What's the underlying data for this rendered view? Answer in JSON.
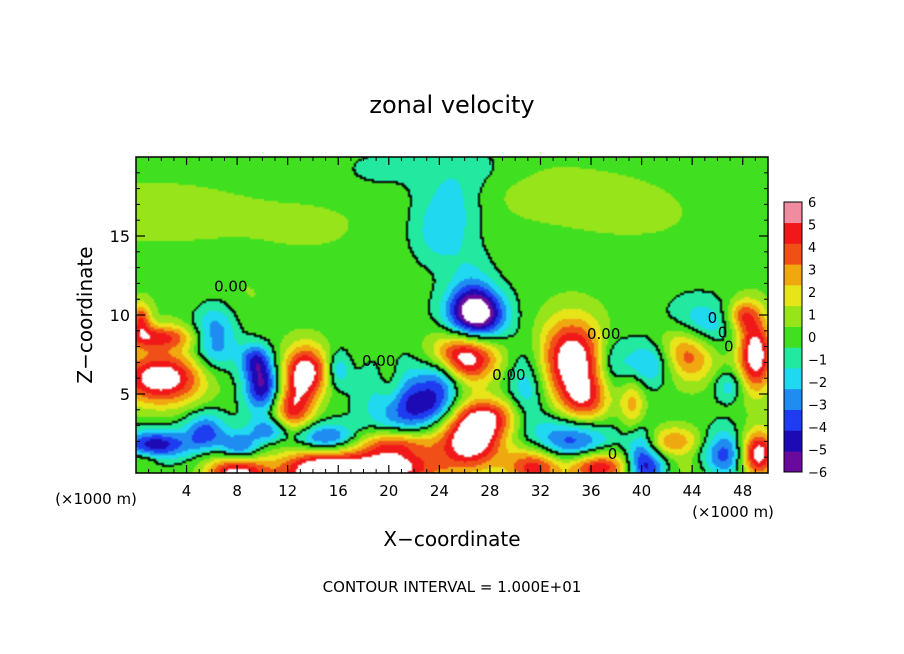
{
  "chart_data": {
    "type": "heatmap",
    "title": "zonal velocity",
    "xlabel": "X−coordinate",
    "ylabel": "Z−coordinate",
    "x_unit_left": "(×1000 m)",
    "x_unit_right": "(×1000 m)",
    "footer": "CONTOUR INTERVAL = 1.000E+01",
    "xlim": [
      0,
      50
    ],
    "ylim": [
      0,
      20
    ],
    "x_ticks": [
      4,
      8,
      12,
      16,
      20,
      24,
      28,
      32,
      36,
      40,
      44,
      48
    ],
    "x_tick_labels": [
      "4",
      "8",
      "12",
      "16",
      "20",
      "24",
      "28",
      "32",
      "36",
      "40",
      "44",
      "48"
    ],
    "y_ticks": [
      5,
      10,
      15
    ],
    "y_tick_labels": [
      "5",
      "10",
      "15"
    ],
    "colorbar": {
      "min": -6,
      "max": 6,
      "tick_labels": [
        "6",
        "5",
        "4",
        "3",
        "2",
        "1",
        "0",
        "−1",
        "−2",
        "−3",
        "−4",
        "−5",
        "−6"
      ],
      "colors": [
        "#6a0a9c",
        "#1e0ab4",
        "#1e3cf0",
        "#1e8cf0",
        "#20d8f0",
        "#22e8a0",
        "#40e020",
        "#98e41a",
        "#e8e41a",
        "#f0a810",
        "#f05018",
        "#f01818",
        "#f08ca0"
      ],
      "above_max_color": "#ffffff"
    },
    "contour_labels": [
      {
        "text": "0.00",
        "x": 7.5,
        "y": 11.8
      },
      {
        "text": "0.00",
        "x": 19.2,
        "y": 7.1
      },
      {
        "text": "0.00",
        "x": 29.5,
        "y": 6.2
      },
      {
        "text": "0.00",
        "x": 37.0,
        "y": 8.8
      },
      {
        "text": "0",
        "x": 45.6,
        "y": 9.8
      },
      {
        "text": "0",
        "x": 46.4,
        "y": 8.9
      },
      {
        "text": "0",
        "x": 46.9,
        "y": 8.0
      },
      {
        "text": "0",
        "x": 37.7,
        "y": 1.2
      }
    ],
    "features": [
      {
        "x": 1.0,
        "y": 16.6,
        "w": 8.0,
        "h": 2.0,
        "v": 1.3
      },
      {
        "x": 14.0,
        "y": 15.6,
        "w": 6.0,
        "h": 2.4,
        "v": 0.6
      },
      {
        "x": 31.5,
        "y": 18.0,
        "w": 10.0,
        "h": 2.2,
        "v": 0.9
      },
      {
        "x": 40.0,
        "y": 16.0,
        "w": 8.0,
        "h": 2.5,
        "v": 0.5
      },
      {
        "x": 6.5,
        "y": 11.0,
        "w": 5.0,
        "h": 2.0,
        "v": 0.7
      },
      {
        "x": 25.0,
        "y": 17.5,
        "w": 2.8,
        "h": 2.5,
        "v": -2.0
      },
      {
        "x": 24.0,
        "y": 15.0,
        "w": 2.2,
        "h": 2.0,
        "v": -1.7
      },
      {
        "x": 26.5,
        "y": 12.5,
        "w": 1.8,
        "h": 1.8,
        "v": -1.2
      },
      {
        "x": 19.5,
        "y": 19.0,
        "w": 3.5,
        "h": 1.4,
        "v": -0.8
      },
      {
        "x": 28.0,
        "y": 19.2,
        "w": 3.0,
        "h": 1.2,
        "v": -0.7
      },
      {
        "x": 26.8,
        "y": 10.5,
        "w": 2.2,
        "h": 1.5,
        "v": -5.5
      },
      {
        "x": 26.0,
        "y": 7.3,
        "w": 2.6,
        "h": 1.6,
        "v": 6.8
      },
      {
        "x": 27.0,
        "y": 9.5,
        "w": 2.2,
        "h": 1.4,
        "v": -4.0
      },
      {
        "x": 24.2,
        "y": 6.0,
        "w": 1.6,
        "h": 1.4,
        "v": -3.5
      },
      {
        "x": 21.0,
        "y": 4.5,
        "w": 2.6,
        "h": 2.4,
        "v": -4.2
      },
      {
        "x": 20.2,
        "y": 5.5,
        "w": 1.2,
        "h": 1.6,
        "v": 2.5
      },
      {
        "x": 23.5,
        "y": 4.2,
        "w": 2.0,
        "h": 1.2,
        "v": -2.8
      },
      {
        "x": 2.0,
        "y": 6.0,
        "w": 3.5,
        "h": 1.7,
        "v": 6.8
      },
      {
        "x": 1.5,
        "y": 8.6,
        "w": 3.5,
        "h": 0.8,
        "v": 4.5
      },
      {
        "x": 0.4,
        "y": 9.8,
        "w": 0.8,
        "h": 1.0,
        "v": 4.0
      },
      {
        "x": 6.2,
        "y": 8.6,
        "w": 1.8,
        "h": 2.2,
        "v": -3.8
      },
      {
        "x": 10.0,
        "y": 5.5,
        "w": 1.4,
        "h": 1.6,
        "v": -5.6
      },
      {
        "x": 9.4,
        "y": 7.2,
        "w": 1.2,
        "h": 1.0,
        "v": -3.5
      },
      {
        "x": 13.4,
        "y": 6.4,
        "w": 1.8,
        "h": 1.7,
        "v": 6.6
      },
      {
        "x": 12.4,
        "y": 4.0,
        "w": 1.6,
        "h": 1.5,
        "v": 4.8
      },
      {
        "x": 16.0,
        "y": 6.5,
        "w": 0.9,
        "h": 1.2,
        "v": -2.5
      },
      {
        "x": 1.6,
        "y": 1.8,
        "w": 2.6,
        "h": 0.9,
        "v": -5.0
      },
      {
        "x": 0.6,
        "y": 0.8,
        "w": 1.2,
        "h": 0.6,
        "v": 1.5
      },
      {
        "x": 5.5,
        "y": 2.6,
        "w": 1.6,
        "h": 1.2,
        "v": -3.8
      },
      {
        "x": 8.2,
        "y": 1.5,
        "w": 1.5,
        "h": 1.0,
        "v": -4.0
      },
      {
        "x": 8.0,
        "y": 0.1,
        "w": 2.4,
        "h": 1.1,
        "v": 6.8
      },
      {
        "x": 10.5,
        "y": 2.7,
        "w": 1.6,
        "h": 0.8,
        "v": -3.0
      },
      {
        "x": 14.3,
        "y": 0.1,
        "w": 3.2,
        "h": 1.4,
        "v": 6.8
      },
      {
        "x": 15.0,
        "y": 2.2,
        "w": 2.5,
        "h": 0.9,
        "v": -4.2
      },
      {
        "x": 20.0,
        "y": 0.3,
        "w": 4.2,
        "h": 1.2,
        "v": 6.8
      },
      {
        "x": 20.5,
        "y": 1.9,
        "w": 3.0,
        "h": 0.9,
        "v": 4.5
      },
      {
        "x": 26.5,
        "y": 2.0,
        "w": 2.6,
        "h": 1.8,
        "v": 6.8
      },
      {
        "x": 27.8,
        "y": 3.6,
        "w": 2.6,
        "h": 1.2,
        "v": 4.2
      },
      {
        "x": 31.0,
        "y": 5.5,
        "w": 1.6,
        "h": 2.6,
        "v": -2.5
      },
      {
        "x": 34.5,
        "y": 7.2,
        "w": 2.6,
        "h": 2.6,
        "v": 6.8
      },
      {
        "x": 35.5,
        "y": 4.5,
        "w": 2.0,
        "h": 1.6,
        "v": 4.0
      },
      {
        "x": 39.3,
        "y": 4.3,
        "w": 1.0,
        "h": 1.6,
        "v": 3.0
      },
      {
        "x": 37.6,
        "y": 7.0,
        "w": 1.3,
        "h": 1.8,
        "v": -2.0
      },
      {
        "x": 34.5,
        "y": 2.0,
        "w": 3.0,
        "h": 1.6,
        "v": -4.2
      },
      {
        "x": 31.5,
        "y": 0.4,
        "w": 2.2,
        "h": 1.2,
        "v": 5.5
      },
      {
        "x": 36.5,
        "y": 0.4,
        "w": 2.6,
        "h": 1.0,
        "v": 6.2
      },
      {
        "x": 40.0,
        "y": 1.6,
        "w": 1.2,
        "h": 1.5,
        "v": -3.2
      },
      {
        "x": 42.5,
        "y": 2.0,
        "w": 2.5,
        "h": 1.0,
        "v": 3.5
      },
      {
        "x": 40.5,
        "y": 0.3,
        "w": 1.6,
        "h": 1.0,
        "v": -3.8
      },
      {
        "x": 43.8,
        "y": 0.2,
        "w": 2.4,
        "h": 0.9,
        "v": 1.0
      },
      {
        "x": 46.5,
        "y": 1.2,
        "w": 1.8,
        "h": 1.5,
        "v": -4.0
      },
      {
        "x": 49.2,
        "y": 1.2,
        "w": 1.4,
        "h": 1.5,
        "v": 6.8
      },
      {
        "x": 43.5,
        "y": 7.8,
        "w": 2.4,
        "h": 1.9,
        "v": 6.8
      },
      {
        "x": 44.3,
        "y": 9.0,
        "w": 2.6,
        "h": 1.8,
        "v": -4.6
      },
      {
        "x": 41.0,
        "y": 7.0,
        "w": 2.2,
        "h": 1.5,
        "v": -3.6
      },
      {
        "x": 49.0,
        "y": 7.5,
        "w": 1.4,
        "h": 2.4,
        "v": 6.8
      },
      {
        "x": 48.0,
        "y": 10.0,
        "w": 1.2,
        "h": 1.0,
        "v": 3.5
      },
      {
        "x": 47.0,
        "y": 5.5,
        "w": 1.2,
        "h": 1.0,
        "v": -2.2
      }
    ]
  }
}
